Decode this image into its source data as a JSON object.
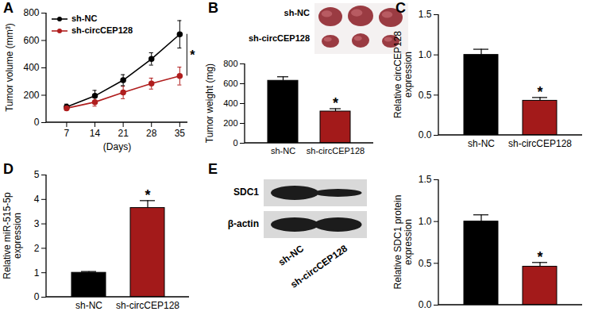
{
  "chart_data": [
    {
      "type": "line",
      "title": "A",
      "x": [
        7,
        14,
        21,
        28,
        35
      ],
      "xlim": [
        2,
        37
      ],
      "xticks": [
        7,
        14,
        21,
        28,
        35
      ],
      "x_label": "(Days)",
      "y_label": "Tumor volume (mm³)",
      "ylim": [
        0,
        800
      ],
      "yticks": [
        0,
        200,
        400,
        600,
        800
      ],
      "legend": "top-left",
      "series": [
        {
          "name": "sh-NC",
          "color": "#000000",
          "marker": "circle",
          "values": [
            115,
            195,
            310,
            465,
            645
          ],
          "errors": [
            20,
            40,
            40,
            45,
            100
          ]
        },
        {
          "name": "sh-circCEP128",
          "color": "#b01e1e",
          "marker": "circle",
          "values": [
            105,
            150,
            220,
            285,
            340
          ],
          "errors": [
            15,
            30,
            45,
            40,
            65
          ]
        }
      ],
      "annotations": [
        {
          "text": "*",
          "x": 35
        }
      ]
    },
    {
      "type": "bar",
      "title": "B",
      "image": {
        "rows": [
          "sh-NC",
          "sh-circCEP128"
        ]
      },
      "categories": [
        "sh-NC",
        "sh-circCEP128"
      ],
      "values": [
        630,
        320
      ],
      "errors": [
        40,
        28
      ],
      "colors": [
        "#000000",
        "#a31a1a"
      ],
      "y_label": "Tumor weight (mg)",
      "ylim": [
        0,
        800
      ],
      "yticks": [
        0,
        200,
        400,
        600,
        800
      ],
      "annotations": [
        {
          "text": "*",
          "category": "sh-circCEP128"
        }
      ]
    },
    {
      "type": "bar",
      "title": "C",
      "categories": [
        "sh-NC",
        "sh-circCEP128"
      ],
      "values": [
        1.0,
        0.43
      ],
      "errors": [
        0.07,
        0.04
      ],
      "colors": [
        "#000000",
        "#a31a1a"
      ],
      "y_label": "Relative circCEP128 expression",
      "ylim": [
        0,
        1.5
      ],
      "yticks": [
        {
          "value": 0,
          "label": "0.0"
        },
        {
          "value": 0.5,
          "label": "0.5"
        },
        {
          "value": 1,
          "label": "1.0"
        },
        {
          "value": 1.5,
          "label": "1.5"
        }
      ],
      "annotations": [
        {
          "text": "*",
          "category": "sh-circCEP128"
        }
      ]
    },
    {
      "type": "bar",
      "title": "D",
      "categories": [
        "sh-NC",
        "sh-circCEP128"
      ],
      "values": [
        1.0,
        3.65
      ],
      "errors": [
        0.05,
        0.3
      ],
      "colors": [
        "#000000",
        "#a31a1a"
      ],
      "y_label": "Relative miR-515-5p expression",
      "ylim": [
        0,
        5
      ],
      "yticks": [
        0,
        1,
        2,
        3,
        4,
        5
      ],
      "annotations": [
        {
          "text": "*",
          "category": "sh-circCEP128"
        }
      ]
    },
    {
      "type": "bar",
      "title": "E",
      "blot": {
        "bands": [
          "SDC1",
          "β-actin"
        ],
        "lanes": [
          "sh-NC",
          "sh-circCEP128"
        ]
      },
      "categories": [
        "sh-NC",
        "sh-circCEP128"
      ],
      "values": [
        1.0,
        0.46
      ],
      "errors": [
        0.08,
        0.05
      ],
      "colors": [
        "#000000",
        "#a31a1a"
      ],
      "tick_labels": "y",
      "y_label": "Relative SDC1 protein expression",
      "ylim": [
        0,
        1.5
      ],
      "yticks": [
        {
          "value": 0,
          "label": "0.0"
        },
        {
          "value": 0.5,
          "label": "0.5"
        },
        {
          "value": 1,
          "label": "1.0"
        },
        {
          "value": 1.5,
          "label": "1.5"
        }
      ],
      "annotations": [
        {
          "text": "*",
          "category": "sh-circCEP128"
        }
      ]
    }
  ]
}
